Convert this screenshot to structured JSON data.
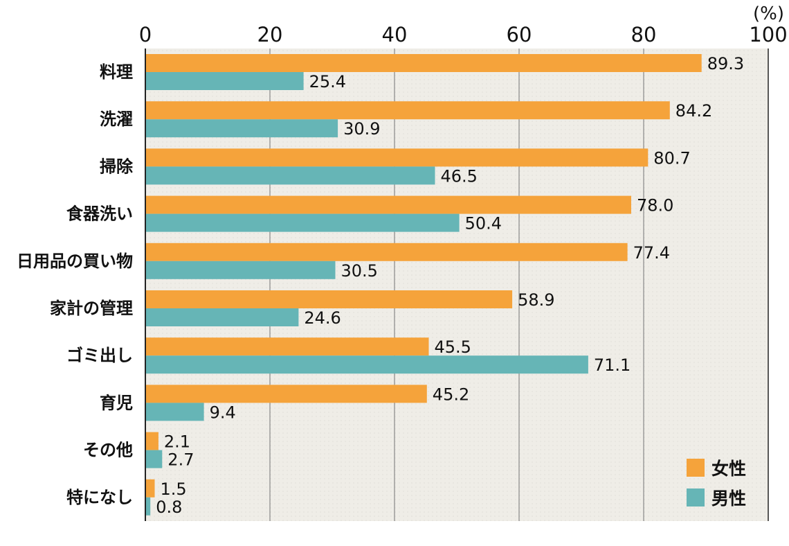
{
  "chart_data": {
    "type": "bar",
    "orientation": "horizontal",
    "title": "",
    "unit_label": "(%)",
    "xlabel": "",
    "ylabel": "",
    "xlim": [
      0,
      100
    ],
    "x_ticks": [
      0,
      20,
      40,
      60,
      80,
      100
    ],
    "grid": true,
    "legend_position": "bottom-right",
    "categories": [
      "料理",
      "洗濯",
      "掃除",
      "食器洗い",
      "日用品の買い物",
      "家計の管理",
      "ゴミ出し",
      "育児",
      "その他",
      "特になし"
    ],
    "series": [
      {
        "name": "女性",
        "color": "#F5A33B",
        "values": [
          89.3,
          84.2,
          80.7,
          78.0,
          77.4,
          58.9,
          45.5,
          45.2,
          2.1,
          1.5
        ],
        "labels": [
          "89.3",
          "84.2",
          "80.7",
          "78.0",
          "77.4",
          "58.9",
          "45.5",
          "45.2",
          "2.1",
          "1.5"
        ]
      },
      {
        "name": "男性",
        "color": "#66B5B6",
        "values": [
          25.4,
          30.9,
          46.5,
          50.4,
          30.5,
          24.6,
          71.1,
          9.4,
          2.7,
          0.8
        ],
        "labels": [
          "25.4",
          "30.9",
          "46.5",
          "50.4",
          "30.5",
          "24.6",
          "71.1",
          "9.4",
          "2.7",
          "0.8"
        ]
      }
    ]
  },
  "colors": {
    "plot_background": "#EFEDE7",
    "gridline": "#888888",
    "axis": "#222222"
  }
}
